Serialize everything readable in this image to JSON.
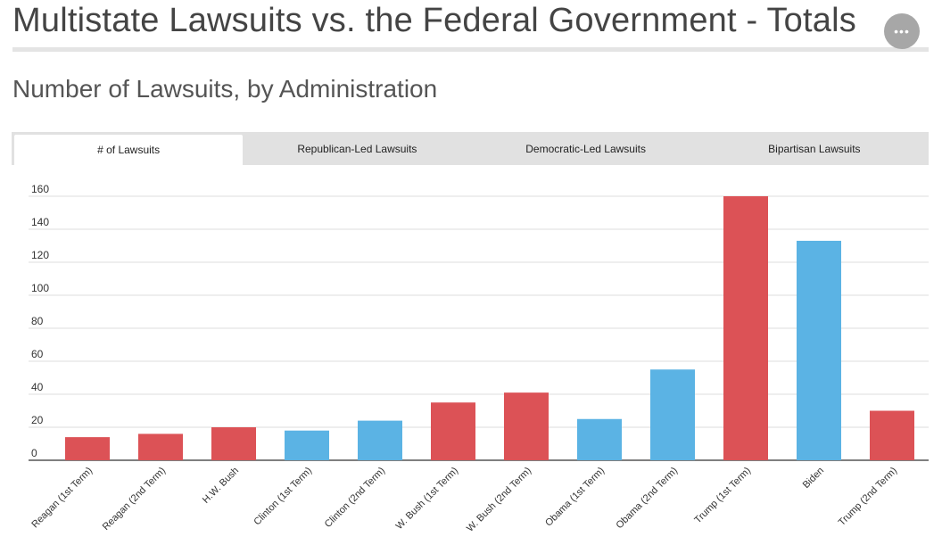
{
  "page": {
    "title": "Multistate Lawsuits vs. the Federal Government - Totals",
    "menu_icon": "ellipsis-icon",
    "menu_glyph": "•••",
    "chart_heading": "Number of Lawsuits, by Administration"
  },
  "tabs": [
    {
      "label": "# of Lawsuits",
      "active": true
    },
    {
      "label": "Republican-Led Lawsuits",
      "active": false
    },
    {
      "label": "Democratic-Led Lawsuits",
      "active": false
    },
    {
      "label": "Bipartisan Lawsuits",
      "active": false
    }
  ],
  "colors": {
    "republican": "#dc5256",
    "democratic": "#5bb3e4",
    "grid": "#dcdcdc",
    "baseline": "#555555"
  },
  "chart_data": {
    "type": "bar",
    "title": "",
    "xlabel": "",
    "ylabel": "",
    "ylim": [
      0,
      160
    ],
    "yticks": [
      0,
      20,
      40,
      60,
      80,
      100,
      120,
      140,
      160
    ],
    "grid": true,
    "categories": [
      "Reagan (1st Term)",
      "Reagan (2nd Term)",
      "H.W. Bush",
      "Clinton (1st Term)",
      "Clinton (2nd Term)",
      "W. Bush (1st Term)",
      "W. Bush (2nd Term)",
      "Obama (1st Term)",
      "Obama (2nd Term)",
      "Trump (1st Term)",
      "Biden",
      "Trump (2nd Term)"
    ],
    "values": [
      14,
      16,
      20,
      18,
      24,
      35,
      41,
      25,
      55,
      160,
      133,
      30
    ],
    "party": [
      "republican",
      "republican",
      "republican",
      "democratic",
      "democratic",
      "republican",
      "republican",
      "democratic",
      "democratic",
      "republican",
      "democratic",
      "republican"
    ]
  }
}
